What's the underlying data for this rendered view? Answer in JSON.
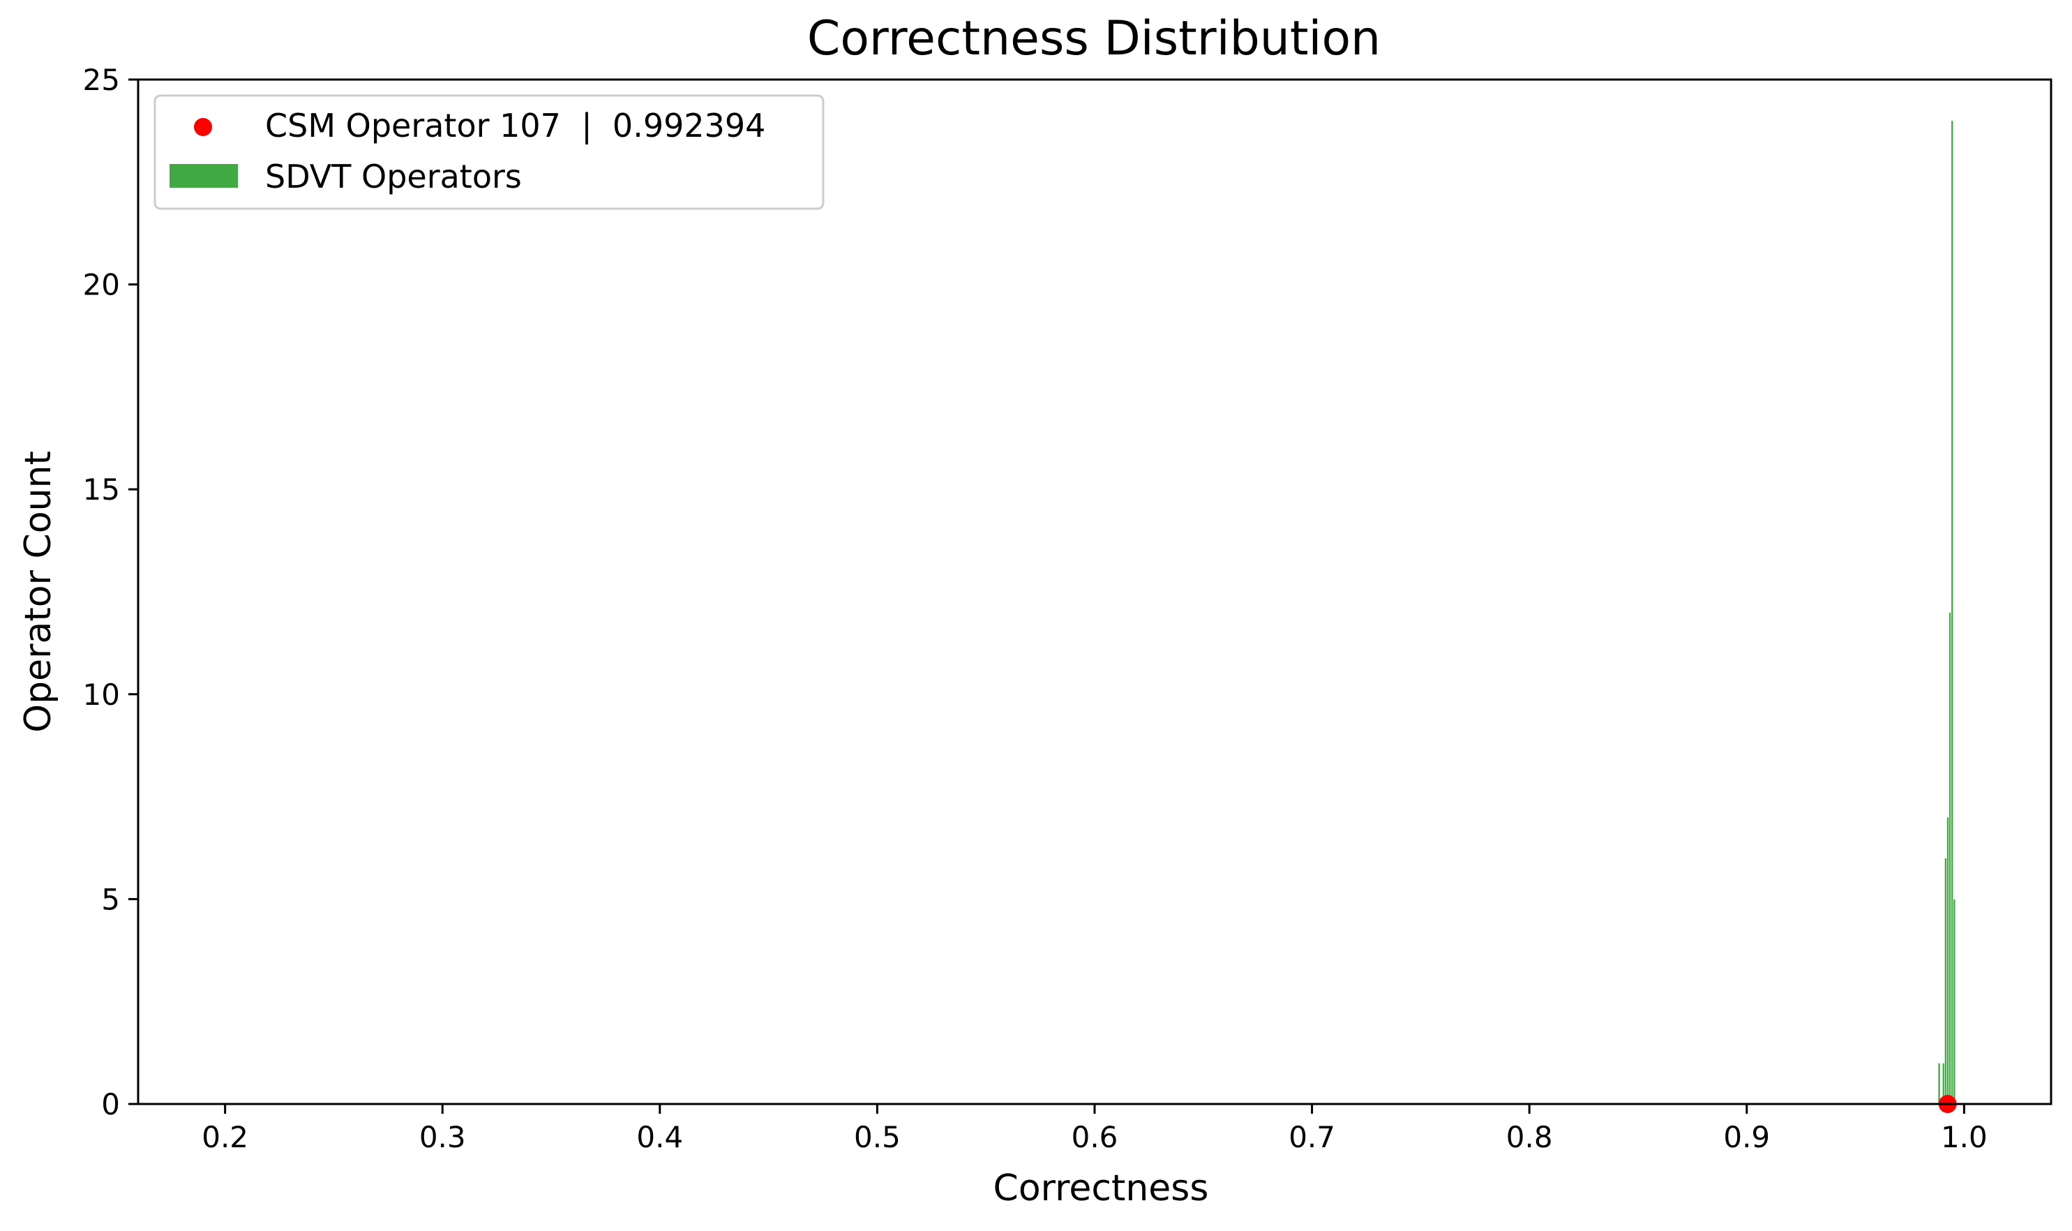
{
  "chart_data": {
    "type": "bar",
    "title": "Correctness Distribution",
    "xlabel": "Correctness",
    "ylabel": "Operator Count",
    "xlim": [
      0.16,
      1.04
    ],
    "ylim": [
      0,
      25
    ],
    "x_ticks": [
      0.2,
      0.3,
      0.4,
      0.5,
      0.6,
      0.7,
      0.8,
      0.9,
      1.0
    ],
    "x_tick_labels": [
      "0.2",
      "0.3",
      "0.4",
      "0.5",
      "0.6",
      "0.7",
      "0.8",
      "0.9",
      "1.0"
    ],
    "y_ticks": [
      0,
      5,
      10,
      15,
      20,
      25
    ],
    "y_tick_labels": [
      "0",
      "5",
      "10",
      "15",
      "20",
      "25"
    ],
    "grid": false,
    "legend_position": "top-left",
    "series": [
      {
        "name": "SDVT Operators",
        "kind": "histogram",
        "color": "#2ca02c",
        "bin_width": 0.001,
        "bins": [
          {
            "start": 0.988,
            "count": 1
          },
          {
            "start": 0.989,
            "count": 0
          },
          {
            "start": 0.99,
            "count": 1
          },
          {
            "start": 0.991,
            "count": 6
          },
          {
            "start": 0.992,
            "count": 7
          },
          {
            "start": 0.993,
            "count": 12
          },
          {
            "start": 0.994,
            "count": 24
          },
          {
            "start": 0.995,
            "count": 5
          }
        ]
      },
      {
        "name": "CSM Operator 107  |  0.992394",
        "kind": "point",
        "color": "#ff0000",
        "x": 0.992394,
        "y": 0
      }
    ]
  }
}
